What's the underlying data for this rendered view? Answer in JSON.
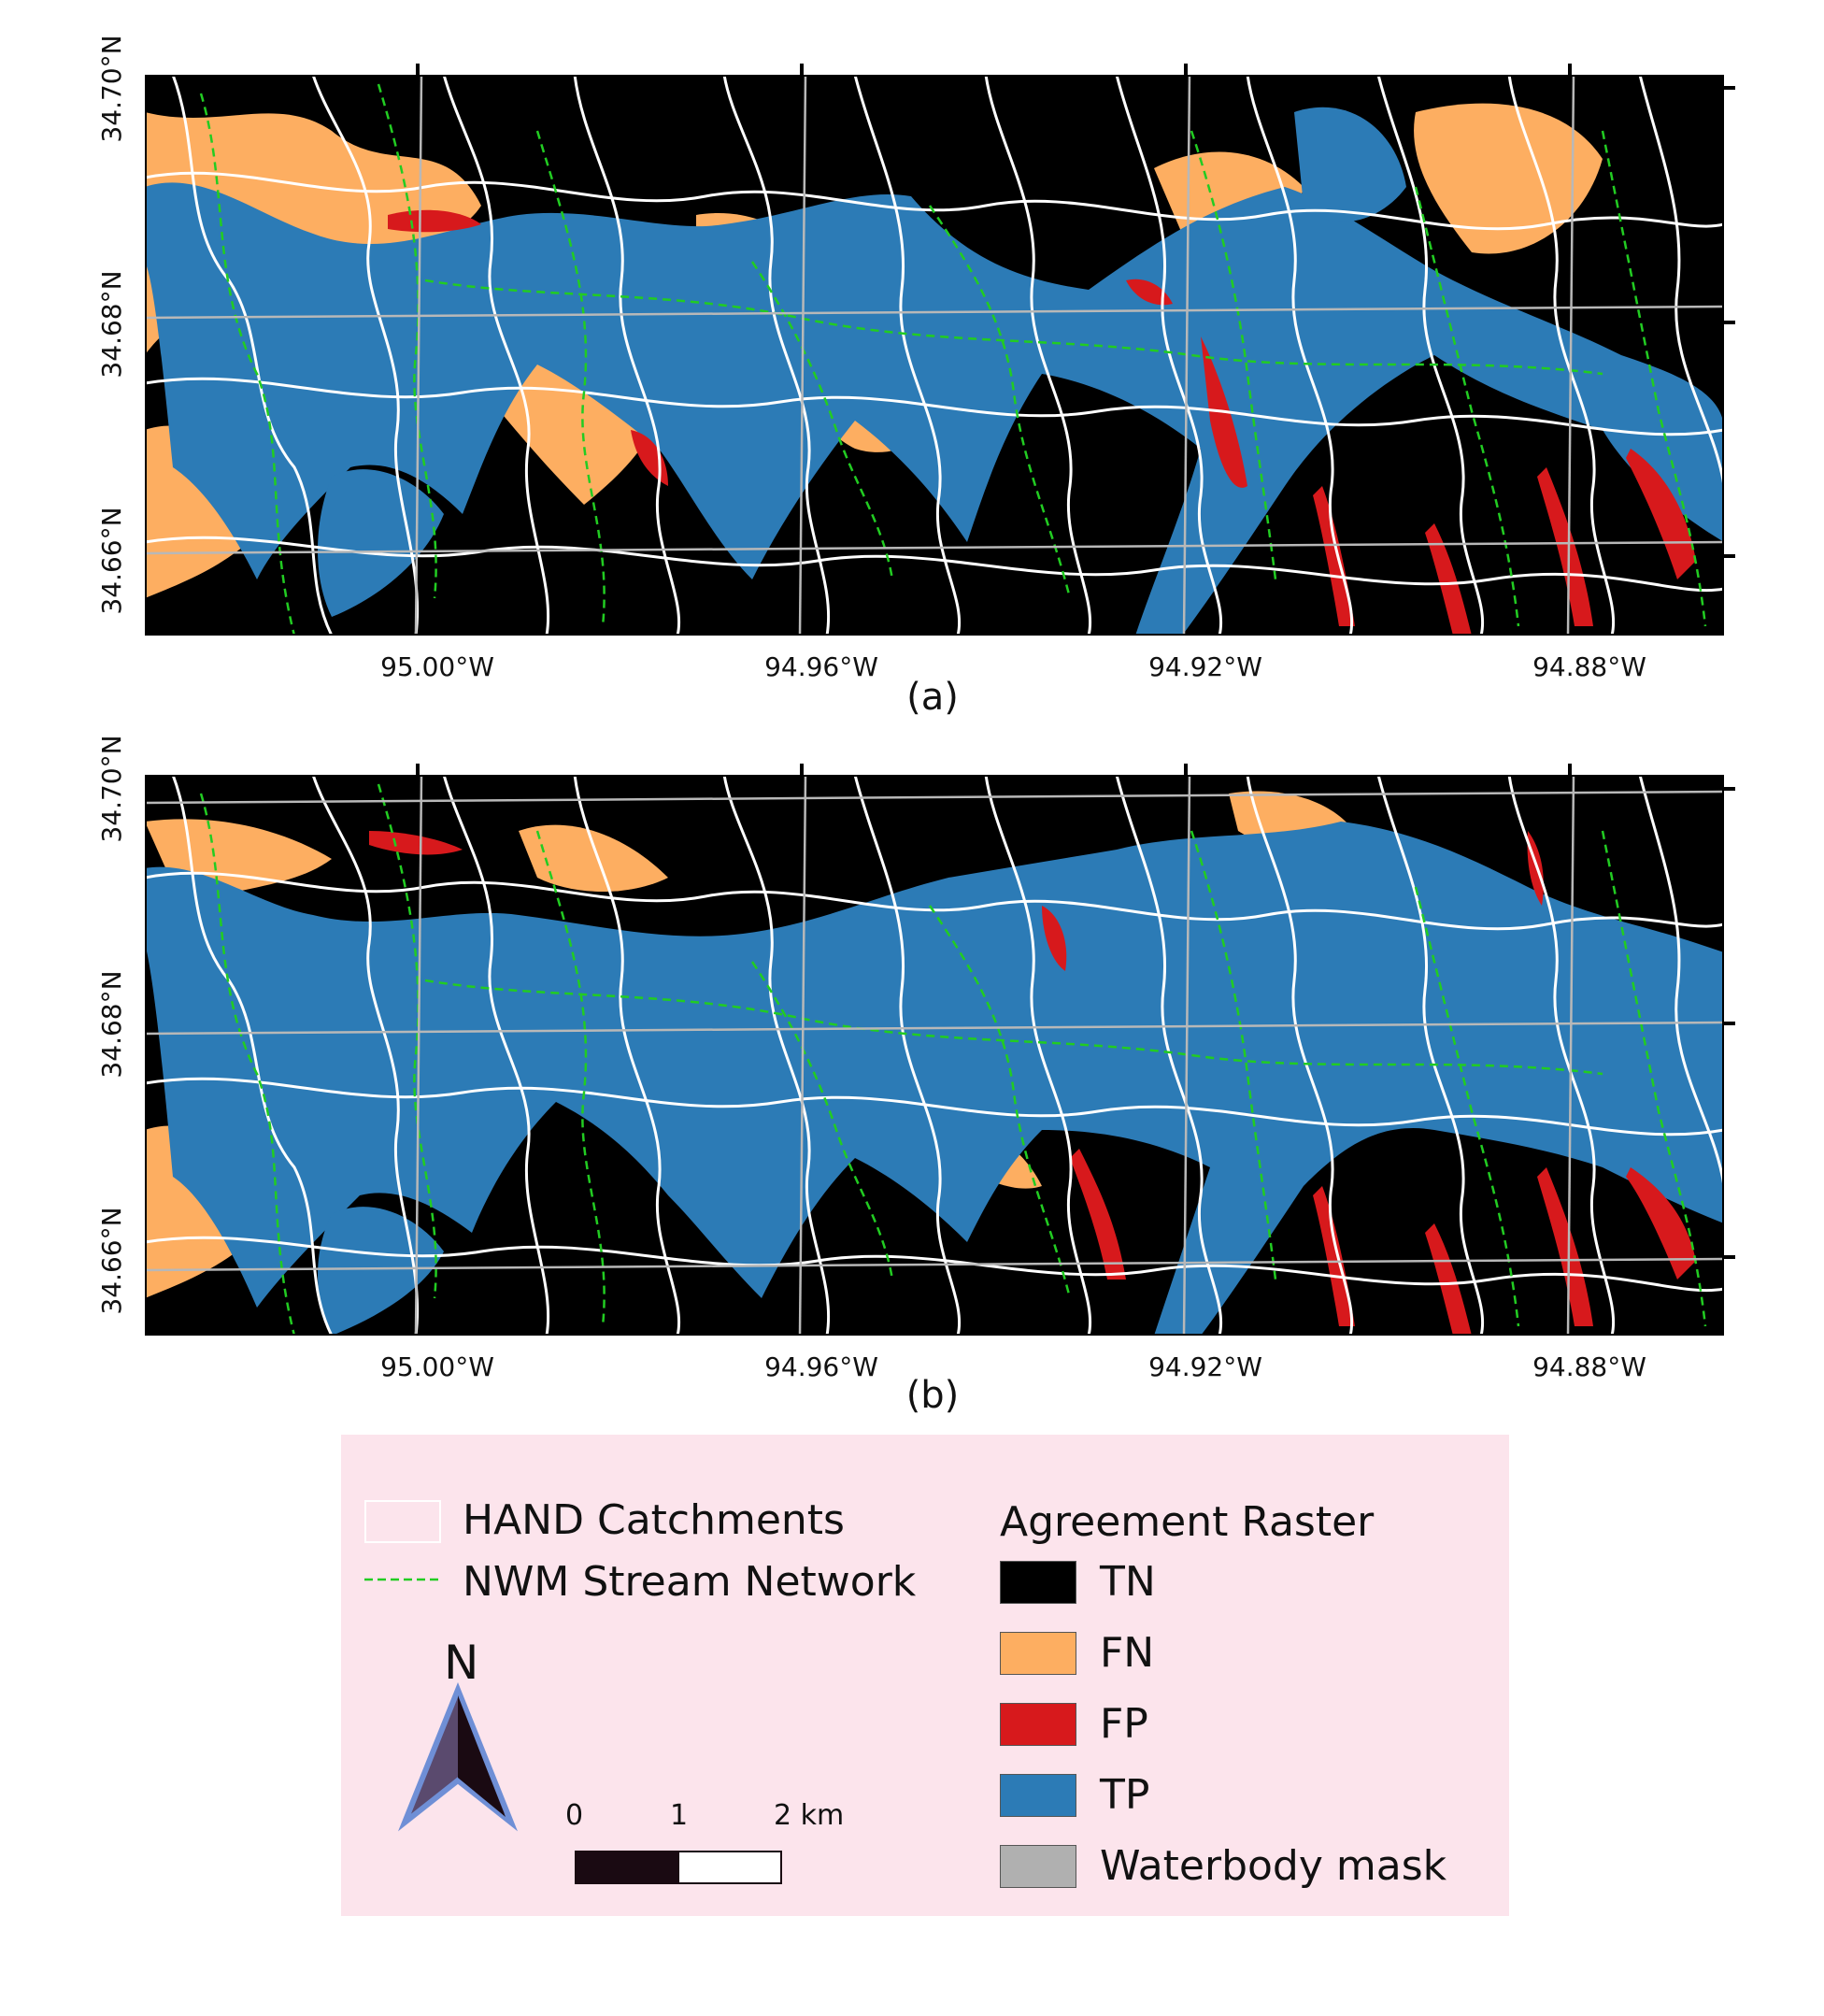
{
  "map": {
    "panels": [
      {
        "caption": "(a)"
      },
      {
        "caption": "(b)"
      }
    ],
    "lat_labels": [
      "34.70°N",
      "34.68°N",
      "34.66°N"
    ],
    "lon_labels": [
      "95.00°W",
      "94.96°W",
      "94.92°W",
      "94.88°W"
    ],
    "classes": [
      {
        "label": "TN",
        "color": "#000000"
      },
      {
        "label": "FN",
        "color": "#fdae61"
      },
      {
        "label": "FP",
        "color": "#d7191c"
      },
      {
        "label": "TP",
        "color": "#2c7bb6"
      },
      {
        "label": "Waterbody mask",
        "color": "#b0b0b0"
      }
    ],
    "catchment_color": "#ffffff",
    "stream_color": "#22cc22"
  },
  "legend": {
    "catchments_label": "HAND Catchments",
    "stream_label": "NWM Stream Network",
    "raster_title": "Agreement Raster",
    "north_label": "N",
    "scale": {
      "labels": [
        "0",
        "1",
        "2 km"
      ]
    }
  }
}
